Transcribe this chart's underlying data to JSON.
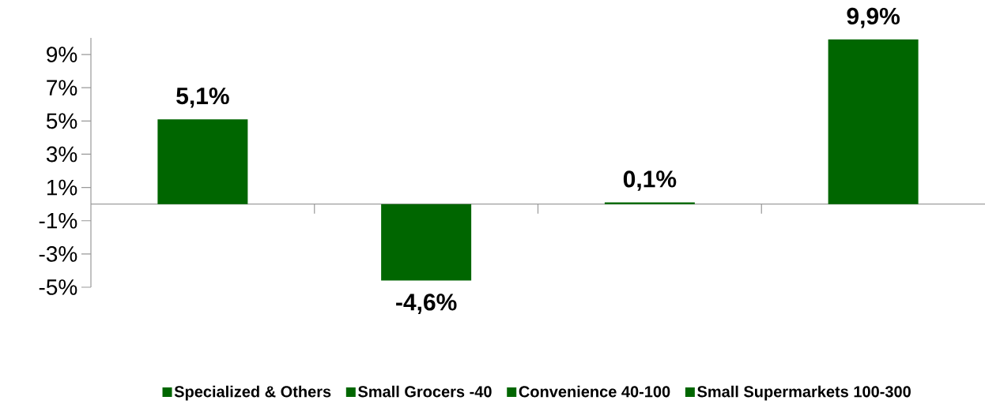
{
  "chart_data": {
    "type": "bar",
    "categories": [
      null,
      null,
      null,
      null
    ],
    "series": [
      {
        "name": "Specialized & Others",
        "color": "#006600",
        "values": [
          5.1,
          null,
          null,
          null
        ],
        "value_labels": [
          "5,1%",
          null,
          null,
          null
        ]
      },
      {
        "name": "Small Grocers -40",
        "color": "#006600",
        "values": [
          null,
          -4.6,
          null,
          null
        ],
        "value_labels": [
          null,
          "-4,6%",
          null,
          null
        ]
      },
      {
        "name": "Convenience 40-100",
        "color": "#006600",
        "values": [
          null,
          null,
          0.1,
          null
        ],
        "value_labels": [
          null,
          null,
          "0,1%",
          null
        ]
      },
      {
        "name": "Small Supermarkets 100-300",
        "color": "#006600",
        "values": [
          null,
          null,
          null,
          9.9
        ],
        "value_labels": [
          null,
          null,
          null,
          "9,9%"
        ]
      }
    ],
    "ylim": [
      -5,
      10
    ],
    "yticks": [
      {
        "value": -5,
        "label": "-5%"
      },
      {
        "value": -3,
        "label": "-3%"
      },
      {
        "value": -1,
        "label": "-1%"
      },
      {
        "value": 1,
        "label": "1%"
      },
      {
        "value": 3,
        "label": "3%"
      },
      {
        "value": 5,
        "label": "5%"
      },
      {
        "value": 7,
        "label": "7%"
      },
      {
        "value": 9,
        "label": "9%"
      }
    ],
    "grid": false,
    "legend": "bottom"
  }
}
